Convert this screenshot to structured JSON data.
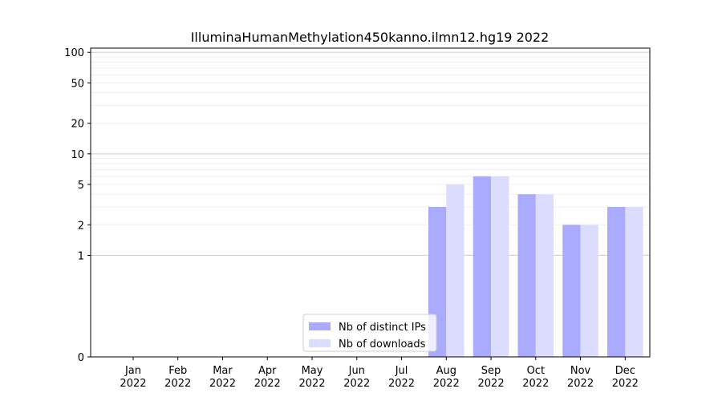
{
  "chart_data": {
    "type": "bar",
    "title": "IlluminaHumanMethylation450kanno.ilmn12.hg19 2022",
    "xlabel": "",
    "ylabel": "",
    "categories": [
      "Jan\n2022",
      "Feb\n2022",
      "Mar\n2022",
      "Apr\n2022",
      "May\n2022",
      "Jun\n2022",
      "Jul\n2022",
      "Aug\n2022",
      "Sep\n2022",
      "Oct\n2022",
      "Nov\n2022",
      "Dec\n2022"
    ],
    "series": [
      {
        "name": "Nb of distinct IPs",
        "values": [
          0,
          0,
          0,
          0,
          0,
          0,
          0,
          3,
          6,
          4,
          2,
          3
        ],
        "color": "#aaaaff"
      },
      {
        "name": "Nb of downloads",
        "values": [
          0,
          0,
          0,
          0,
          0,
          0,
          0,
          5,
          6,
          4,
          2,
          3
        ],
        "color": "#dcdcff"
      }
    ],
    "yscale": "symlog",
    "ylim": [
      0,
      110
    ],
    "yticks": [
      0,
      1,
      2,
      5,
      10,
      20,
      50,
      100
    ],
    "grid": true,
    "legend_position": "bottom-center"
  }
}
